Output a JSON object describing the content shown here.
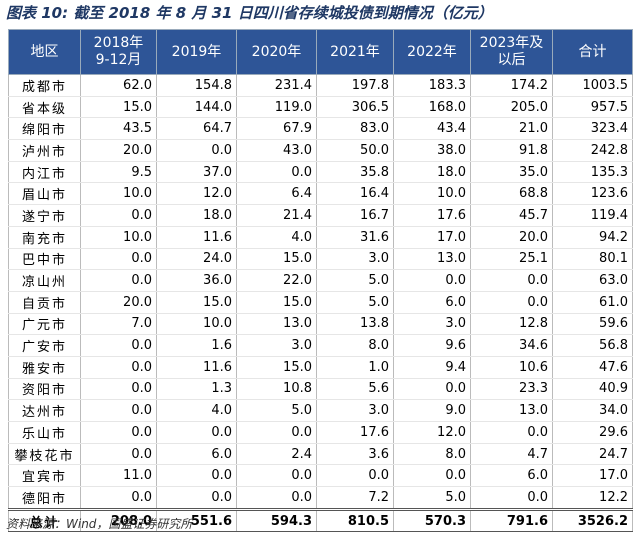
{
  "title": "图表 10: 截至 2018 年 8 月 31 日四川省存续城投债到期情况（亿元）",
  "table": {
    "header": [
      "地区",
      "2018年\n9-12月",
      "2019年",
      "2020年",
      "2021年",
      "2022年",
      "2023年及\n以后",
      "合计"
    ],
    "rows": [
      [
        "成都市",
        "62.0",
        "154.8",
        "231.4",
        "197.8",
        "183.3",
        "174.2",
        "1003.5"
      ],
      [
        "省本级",
        "15.0",
        "144.0",
        "119.0",
        "306.5",
        "168.0",
        "205.0",
        "957.5"
      ],
      [
        "绵阳市",
        "43.5",
        "64.7",
        "67.9",
        "83.0",
        "43.4",
        "21.0",
        "323.4"
      ],
      [
        "泸州市",
        "20.0",
        "0.0",
        "43.0",
        "50.0",
        "38.0",
        "91.8",
        "242.8"
      ],
      [
        "内江市",
        "9.5",
        "37.0",
        "0.0",
        "35.8",
        "18.0",
        "35.0",
        "135.3"
      ],
      [
        "眉山市",
        "10.0",
        "12.0",
        "6.4",
        "16.4",
        "10.0",
        "68.8",
        "123.6"
      ],
      [
        "遂宁市",
        "0.0",
        "18.0",
        "21.4",
        "16.7",
        "17.6",
        "45.7",
        "119.4"
      ],
      [
        "南充市",
        "10.0",
        "11.6",
        "4.0",
        "31.6",
        "17.0",
        "20.0",
        "94.2"
      ],
      [
        "巴中市",
        "0.0",
        "24.0",
        "15.0",
        "3.0",
        "13.0",
        "25.1",
        "80.1"
      ],
      [
        "凉山州",
        "0.0",
        "36.0",
        "22.0",
        "5.0",
        "0.0",
        "0.0",
        "63.0"
      ],
      [
        "自贡市",
        "20.0",
        "15.0",
        "15.0",
        "5.0",
        "6.0",
        "0.0",
        "61.0"
      ],
      [
        "广元市",
        "7.0",
        "10.0",
        "13.0",
        "13.8",
        "3.0",
        "12.8",
        "59.6"
      ],
      [
        "广安市",
        "0.0",
        "1.6",
        "3.0",
        "8.0",
        "9.6",
        "34.6",
        "56.8"
      ],
      [
        "雅安市",
        "0.0",
        "11.6",
        "15.0",
        "1.0",
        "9.4",
        "10.6",
        "47.6"
      ],
      [
        "资阳市",
        "0.0",
        "1.3",
        "10.8",
        "5.6",
        "0.0",
        "23.3",
        "40.9"
      ],
      [
        "达州市",
        "0.0",
        "4.0",
        "5.0",
        "3.0",
        "9.0",
        "13.0",
        "34.0"
      ],
      [
        "乐山市",
        "0.0",
        "0.0",
        "0.0",
        "17.6",
        "12.0",
        "0.0",
        "29.6"
      ],
      [
        "攀枝花市",
        "0.0",
        "6.0",
        "2.4",
        "3.6",
        "8.0",
        "4.7",
        "24.7"
      ],
      [
        "宜宾市",
        "11.0",
        "0.0",
        "0.0",
        "0.0",
        "0.0",
        "6.0",
        "17.0"
      ],
      [
        "德阳市",
        "0.0",
        "0.0",
        "0.0",
        "7.2",
        "5.0",
        "0.0",
        "12.2"
      ]
    ],
    "total": [
      "总计",
      "208.0",
      "551.6",
      "594.3",
      "810.5",
      "570.3",
      "791.6",
      "3526.2"
    ]
  },
  "source": "资料来源：Wind，国盛证券研究所"
}
